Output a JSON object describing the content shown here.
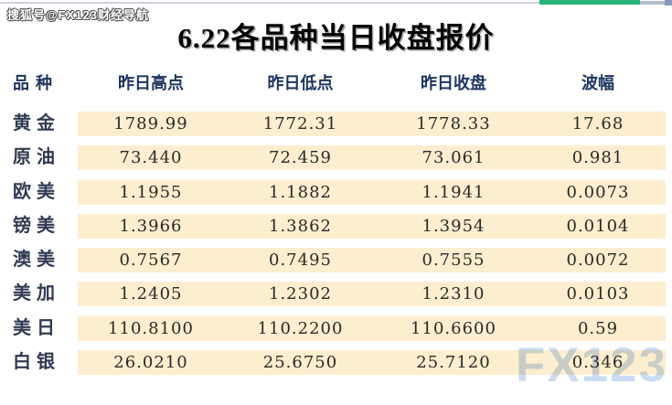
{
  "page": {
    "source_watermark": "搜狐号@FX123财经导航",
    "brand_watermark": "FX123",
    "title": "6.22各品种当日收盘报价"
  },
  "table": {
    "headers": [
      "品种",
      "昨日高点",
      "昨日低点",
      "昨日收盘",
      "波幅"
    ],
    "rows": [
      {
        "name": "黄金",
        "high": "1789.99",
        "low": "1772.31",
        "close": "1778.33",
        "range": "17.68"
      },
      {
        "name": "原油",
        "high": "73.440",
        "low": "72.459",
        "close": "73.061",
        "range": "0.981"
      },
      {
        "name": "欧美",
        "high": "1.1955",
        "low": "1.1882",
        "close": "1.1941",
        "range": "0.0073"
      },
      {
        "name": "镑美",
        "high": "1.3966",
        "low": "1.3862",
        "close": "1.3954",
        "range": "0.0104"
      },
      {
        "name": "澳美",
        "high": "0.7567",
        "low": "0.7495",
        "close": "0.7555",
        "range": "0.0072"
      },
      {
        "name": "美加",
        "high": "1.2405",
        "low": "1.2302",
        "close": "1.2310",
        "range": "0.0103"
      },
      {
        "name": "美日",
        "high": "110.8100",
        "low": "110.2200",
        "close": "110.6600",
        "range": "0.59"
      },
      {
        "name": "白银",
        "high": "26.0210",
        "low": "25.6750",
        "close": "25.7120",
        "range": "0.346"
      }
    ]
  },
  "colors": {
    "row_band": "#fdeecf",
    "header_text": "#1c3560",
    "progress_green": "#27b578",
    "progress_gray": "#b3bdd2"
  }
}
